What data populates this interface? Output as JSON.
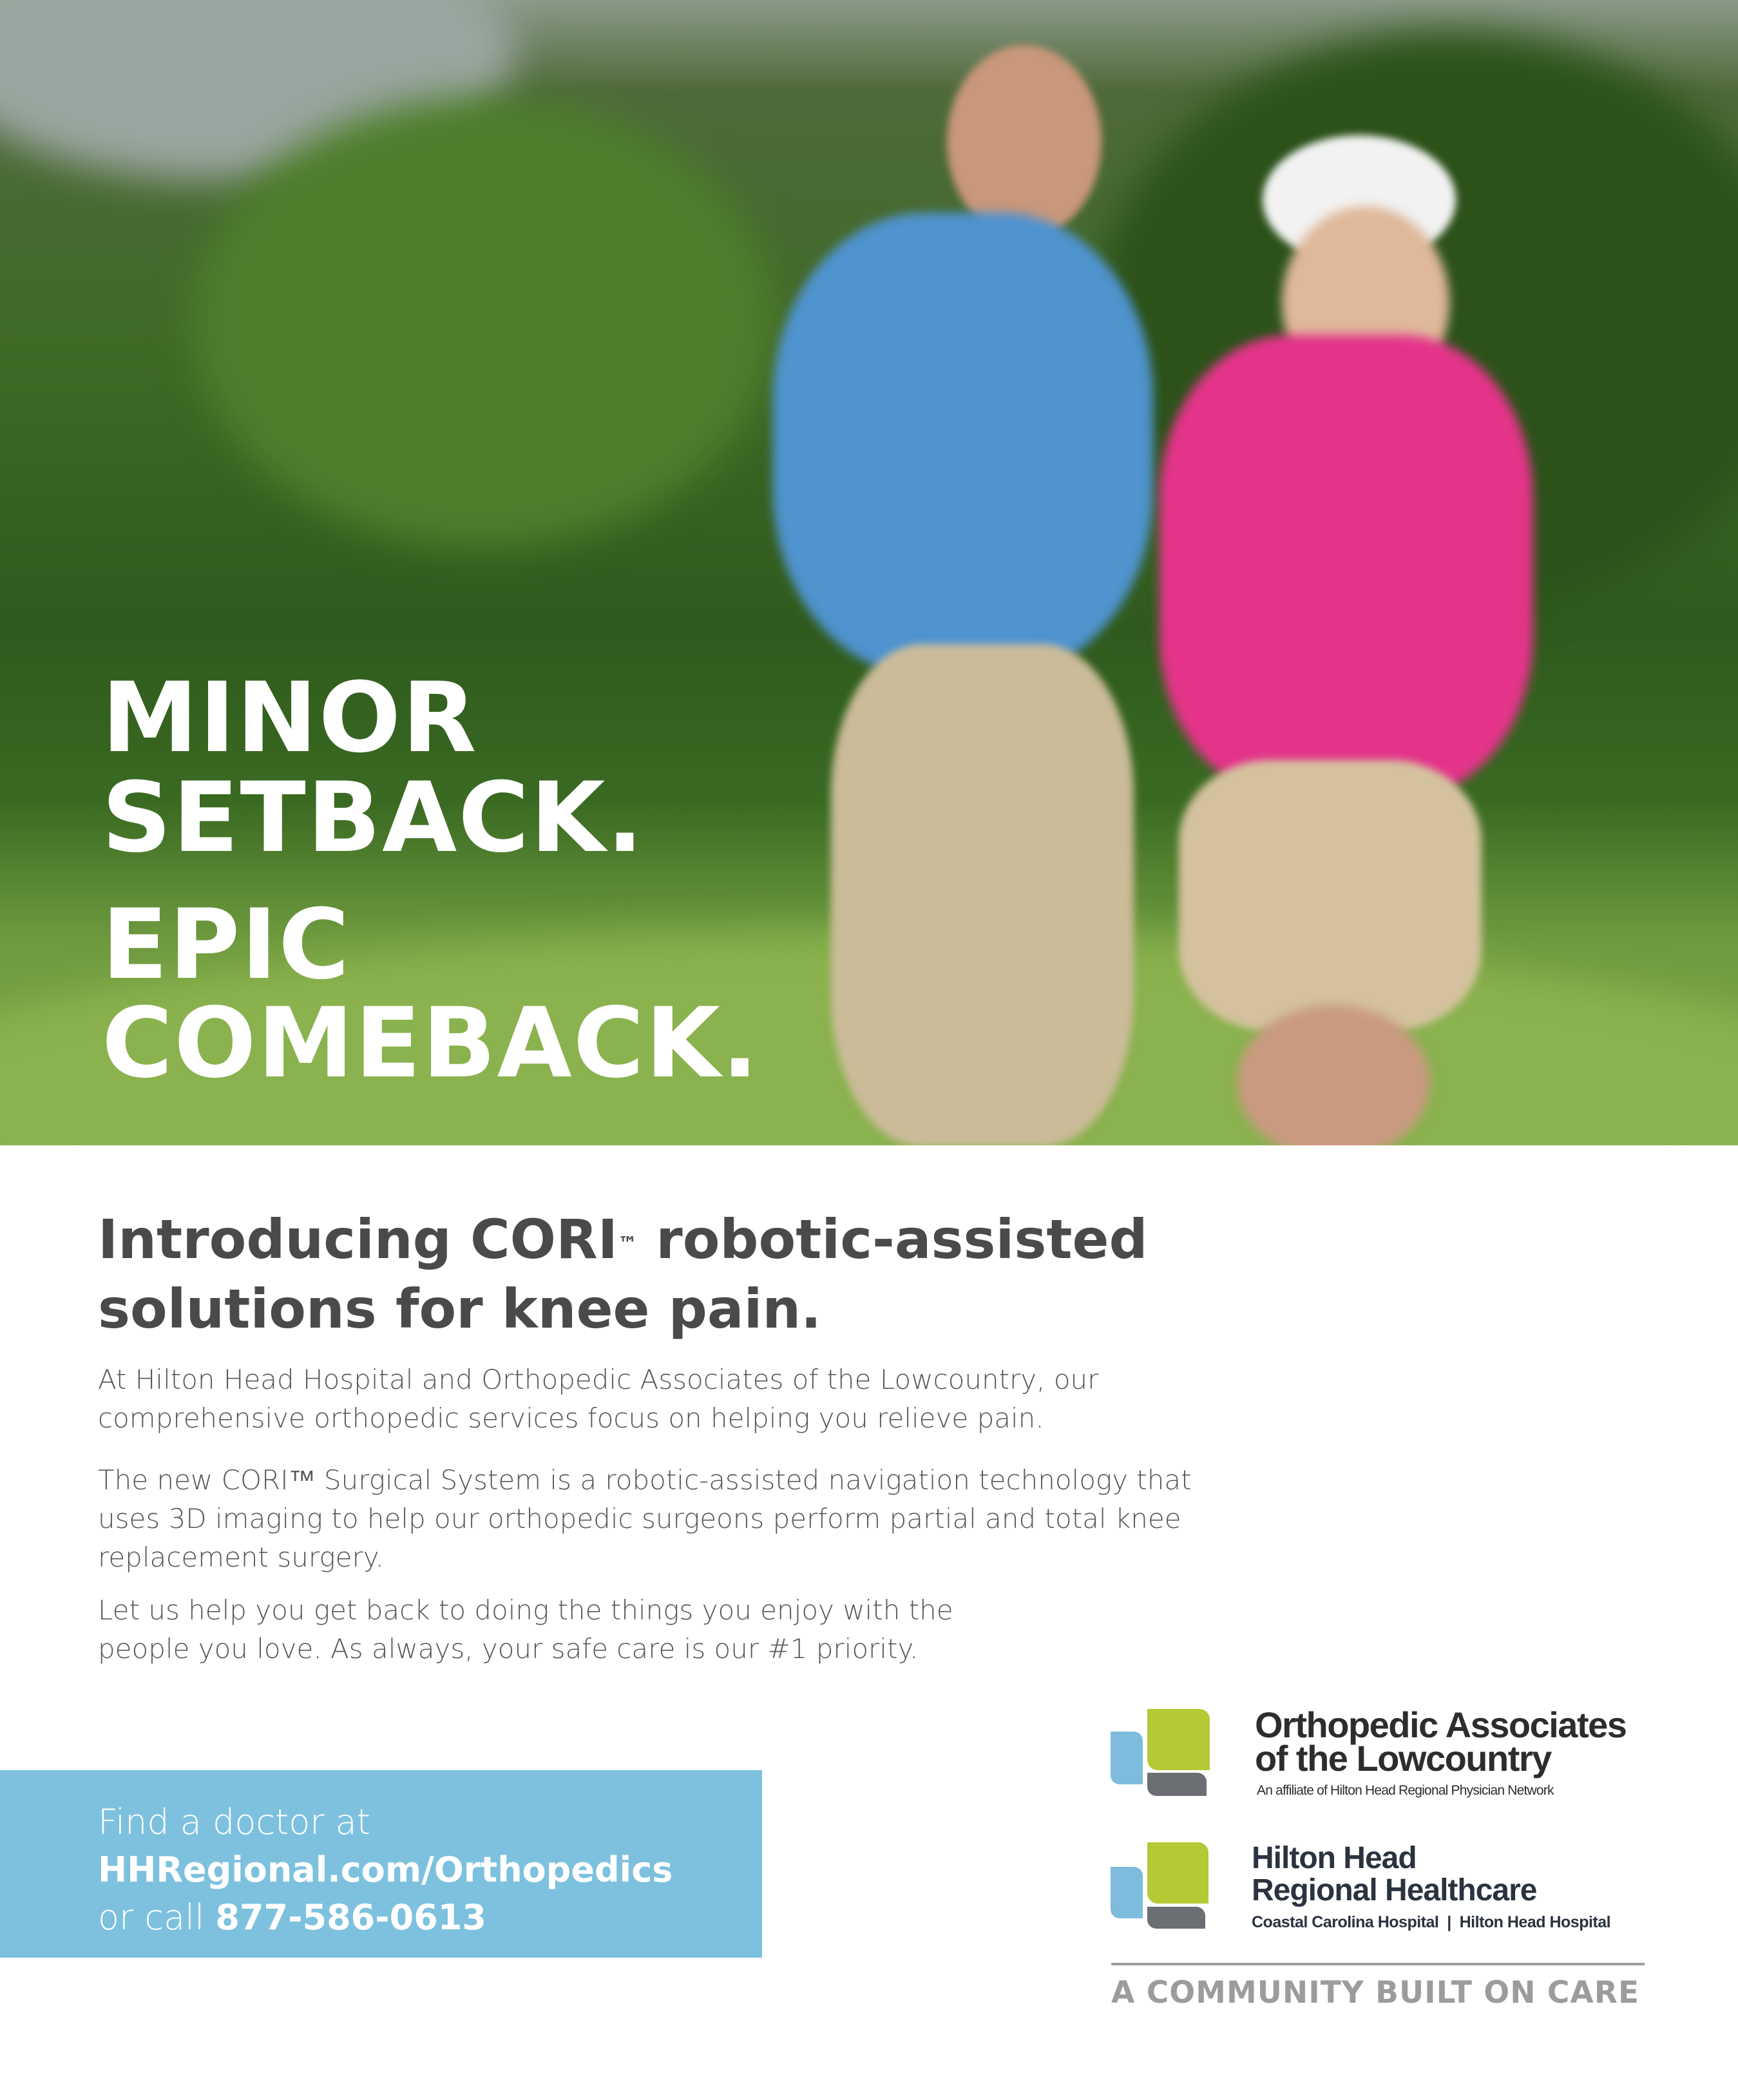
{
  "hero": {
    "line1": "MINOR",
    "line2": "SETBACK.",
    "line3": "EPIC",
    "line4": "COMEBACK."
  },
  "intro": {
    "heading_part1": "Introducing CORI",
    "heading_tm": "™",
    "heading_part2": " robotic-assisted",
    "heading_line2": "solutions for knee pain.",
    "paragraphs": [
      "At Hilton Head Hospital and Orthopedic Associates of the Lowcountry, our comprehensive orthopedic services focus on helping you relieve pain.",
      "The new CORI™ Surgical System is a robotic-assisted navigation technology that uses 3D imaging to help our orthopedic surgeons perform partial and total knee replacement surgery.",
      "Let us help you get back to doing the things you enjoy with the people you love. As always, your safe care is our #1 priority."
    ]
  },
  "cta": {
    "line1": "Find a doctor at",
    "url": "HHRegional.com/Orthopedics",
    "call_prefix": "or call ",
    "phone": "877-586-0613",
    "background": "#7dc1df"
  },
  "logos": {
    "oal": {
      "name_line1": "Orthopedic Associates",
      "name_line2": "of the Lowcountry",
      "subtitle": "An affiliate of Hilton Head Regional Physician Network"
    },
    "hhrh": {
      "name_line1": "Hilton Head",
      "name_line2": "Regional Healthcare",
      "subtitle": "Coastal Carolina Hospital  |  Hilton Head Hospital"
    },
    "colors": {
      "blue": "#7dbcdc",
      "green": "#b5c935",
      "gray": "#6b6e72"
    }
  },
  "tagline": "A COMMUNITY BUILT ON CARE"
}
